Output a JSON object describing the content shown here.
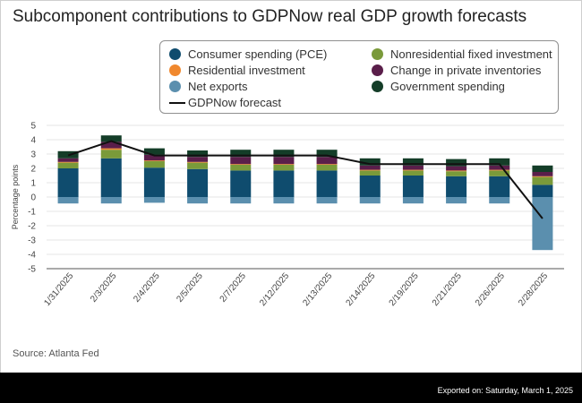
{
  "page": {
    "title": "Subcomponent contributions to GDPNow real GDP growth forecasts",
    "source": "Source: Atlanta Fed",
    "exported": "Exported on: Saturday, March 1, 2025"
  },
  "legend": {
    "items": [
      {
        "label": "Consumer spending (PCE)",
        "color": "#0f4c6e",
        "kind": "dot"
      },
      {
        "label": "Residential investment",
        "color": "#f0882e",
        "kind": "dot"
      },
      {
        "label": "Net exports",
        "color": "#5b8fae",
        "kind": "dot"
      },
      {
        "label": "GDPNow forecast",
        "color": "#111111",
        "kind": "line"
      },
      {
        "label": "Nonresidential fixed investment",
        "color": "#7a9a3a",
        "kind": "dot"
      },
      {
        "label": "Change in private inventories",
        "color": "#5a1e4a",
        "kind": "dot"
      },
      {
        "label": "Government spending",
        "color": "#143d28",
        "kind": "dot"
      }
    ]
  },
  "chart_data": {
    "type": "bar",
    "stacked": true,
    "ylabel": "Percentage points",
    "ylim": [
      -5,
      5
    ],
    "yticks": [
      5,
      4,
      3,
      2,
      1,
      0,
      -1,
      -2,
      -3,
      -4,
      -5
    ],
    "grid": true,
    "legend_position": "top-right",
    "categories": [
      "1/31/2025",
      "2/3/2025",
      "2/4/2025",
      "2/5/2025",
      "2/7/2025",
      "2/12/2025",
      "2/13/2025",
      "2/14/2025",
      "2/19/2025",
      "2/21/2025",
      "2/26/2025",
      "2/28/2025"
    ],
    "series": [
      {
        "name": "Consumer spending (PCE)",
        "color": "#0f4c6e",
        "values": [
          2.0,
          2.7,
          2.05,
          1.95,
          1.85,
          1.85,
          1.85,
          1.5,
          1.5,
          1.45,
          1.45,
          0.85
        ]
      },
      {
        "name": "Nonresidential fixed investment",
        "color": "#7a9a3a",
        "values": [
          0.4,
          0.6,
          0.45,
          0.45,
          0.4,
          0.4,
          0.4,
          0.35,
          0.35,
          0.35,
          0.4,
          0.55
        ]
      },
      {
        "name": "Residential investment",
        "color": "#f0882e",
        "values": [
          0.05,
          0.1,
          0.05,
          0.05,
          0.05,
          0.05,
          0.05,
          0.05,
          0.05,
          0.05,
          0.05,
          0.05
        ]
      },
      {
        "name": "Change in private inventories",
        "color": "#5a1e4a",
        "values": [
          0.25,
          0.45,
          0.4,
          0.35,
          0.5,
          0.5,
          0.5,
          0.3,
          0.3,
          0.3,
          0.3,
          0.3
        ]
      },
      {
        "name": "Government spending",
        "color": "#143d28",
        "values": [
          0.5,
          0.45,
          0.45,
          0.45,
          0.5,
          0.5,
          0.5,
          0.5,
          0.5,
          0.5,
          0.5,
          0.45
        ]
      },
      {
        "name": "Net exports",
        "color": "#5b8fae",
        "values": [
          -0.45,
          -0.45,
          -0.4,
          -0.45,
          -0.45,
          -0.45,
          -0.45,
          -0.45,
          -0.45,
          -0.45,
          -0.45,
          -3.7
        ]
      }
    ],
    "line": {
      "name": "GDPNow forecast",
      "color": "#111111",
      "values": [
        2.9,
        3.9,
        2.9,
        2.9,
        2.9,
        2.9,
        2.9,
        2.3,
        2.3,
        2.3,
        2.3,
        -1.5
      ]
    }
  }
}
